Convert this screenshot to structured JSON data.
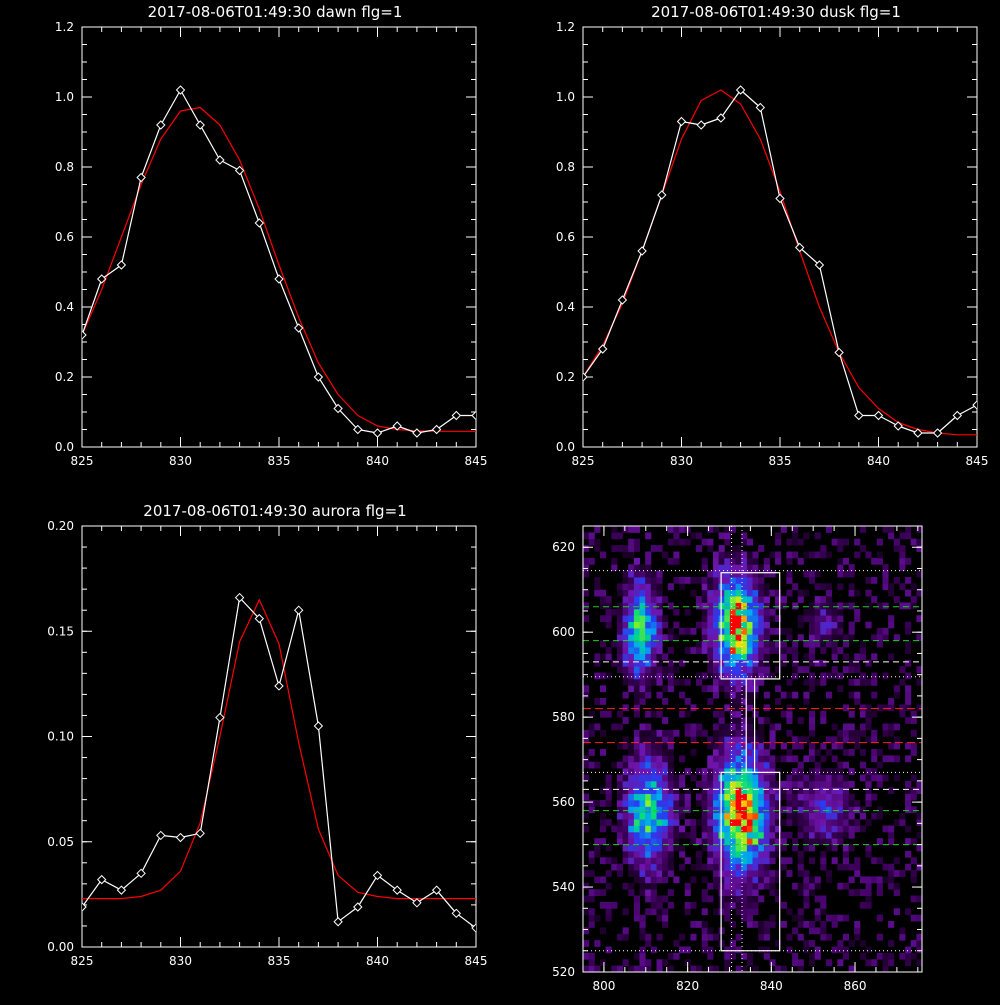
{
  "colors": {
    "background": "#000000",
    "axes": "#ffffff",
    "observed": "#ffffff",
    "fit": "#ff0000",
    "green_line": "#22cc22",
    "red_line": "#ff2222",
    "box": "#ffffff"
  },
  "chart_data": [
    {
      "id": "dawn",
      "type": "line",
      "title": "2017-08-06T01:49:30 dawn flg=1",
      "xlim": [
        825,
        845
      ],
      "ylim": [
        0,
        1.2
      ],
      "xticks": [
        "825",
        "830",
        "835",
        "840",
        "845"
      ],
      "yticks": [
        "0.0",
        "0.2",
        "0.4",
        "0.6",
        "0.8",
        "1.0",
        "1.2"
      ],
      "series": [
        {
          "style": "observed",
          "x": [
            825,
            826,
            827,
            828,
            829,
            830,
            831,
            832,
            833,
            834,
            835,
            836,
            837,
            838,
            839,
            840,
            841,
            842,
            843,
            844,
            845
          ],
          "y": [
            0.32,
            0.48,
            0.52,
            0.77,
            0.92,
            1.02,
            0.92,
            0.82,
            0.79,
            0.64,
            0.48,
            0.34,
            0.2,
            0.11,
            0.05,
            0.04,
            0.06,
            0.04,
            0.05,
            0.09,
            0.09
          ]
        },
        {
          "style": "fit",
          "x": [
            825,
            826,
            827,
            828,
            829,
            830,
            831,
            832,
            833,
            834,
            835,
            836,
            837,
            838,
            839,
            840,
            841,
            842,
            843,
            844,
            845
          ],
          "y": [
            0.32,
            0.45,
            0.6,
            0.75,
            0.88,
            0.96,
            0.97,
            0.92,
            0.82,
            0.68,
            0.52,
            0.37,
            0.24,
            0.15,
            0.09,
            0.06,
            0.05,
            0.046,
            0.045,
            0.045,
            0.045
          ]
        }
      ]
    },
    {
      "id": "dusk",
      "type": "line",
      "title": "2017-08-06T01:49:30 dusk flg=1",
      "xlim": [
        825,
        845
      ],
      "ylim": [
        0,
        1.2
      ],
      "xticks": [
        "825",
        "830",
        "835",
        "840",
        "845"
      ],
      "yticks": [
        "0.0",
        "0.2",
        "0.4",
        "0.6",
        "0.8",
        "1.0",
        "1.2"
      ],
      "series": [
        {
          "style": "observed",
          "x": [
            825,
            826,
            827,
            828,
            829,
            830,
            831,
            832,
            833,
            834,
            835,
            836,
            837,
            838,
            839,
            840,
            841,
            842,
            843,
            844,
            845
          ],
          "y": [
            0.2,
            0.28,
            0.42,
            0.56,
            0.72,
            0.93,
            0.92,
            0.94,
            1.02,
            0.97,
            0.71,
            0.57,
            0.52,
            0.27,
            0.09,
            0.09,
            0.06,
            0.04,
            0.04,
            0.09,
            0.12
          ]
        },
        {
          "style": "fit",
          "x": [
            825,
            826,
            827,
            828,
            829,
            830,
            831,
            832,
            833,
            834,
            835,
            836,
            837,
            838,
            839,
            840,
            841,
            842,
            843,
            844,
            845
          ],
          "y": [
            0.2,
            0.29,
            0.41,
            0.56,
            0.72,
            0.88,
            0.99,
            1.02,
            0.98,
            0.88,
            0.73,
            0.56,
            0.4,
            0.27,
            0.17,
            0.11,
            0.07,
            0.05,
            0.04,
            0.035,
            0.035
          ]
        }
      ]
    },
    {
      "id": "aurora",
      "type": "line",
      "title": "2017-08-06T01:49:30 aurora flg=1",
      "xlim": [
        825,
        845
      ],
      "ylim": [
        0,
        0.2
      ],
      "xticks": [
        "825",
        "830",
        "835",
        "840",
        "845"
      ],
      "yticks": [
        "0.00",
        "0.05",
        "0.10",
        "0.15",
        "0.20"
      ],
      "series": [
        {
          "style": "observed",
          "x": [
            825,
            826,
            827,
            828,
            829,
            830,
            831,
            832,
            833,
            834,
            835,
            836,
            837,
            838,
            839,
            840,
            841,
            842,
            843,
            844,
            845
          ],
          "y": [
            0.019,
            0.032,
            0.027,
            0.035,
            0.053,
            0.052,
            0.054,
            0.109,
            0.166,
            0.156,
            0.124,
            0.16,
            0.105,
            0.012,
            0.019,
            0.034,
            0.027,
            0.021,
            0.027,
            0.016,
            0.009
          ]
        },
        {
          "style": "fit",
          "x": [
            825,
            826,
            827,
            828,
            829,
            830,
            831,
            832,
            833,
            834,
            835,
            836,
            837,
            838,
            839,
            840,
            841,
            842,
            843,
            844,
            845
          ],
          "y": [
            0.023,
            0.023,
            0.023,
            0.024,
            0.027,
            0.036,
            0.059,
            0.1,
            0.145,
            0.165,
            0.144,
            0.097,
            0.056,
            0.034,
            0.026,
            0.024,
            0.023,
            0.023,
            0.023,
            0.023,
            0.023
          ]
        }
      ]
    },
    {
      "id": "image",
      "type": "heatmap",
      "xlim": [
        795,
        876
      ],
      "ylim": [
        520,
        625
      ],
      "xticks": [
        "800",
        "820",
        "840",
        "860"
      ],
      "yticks": [
        "520",
        "540",
        "560",
        "580",
        "600",
        "620"
      ],
      "blobs": [
        {
          "x": 808,
          "y": 600,
          "sx": 2.5,
          "sy": 7,
          "amp": 0.7
        },
        {
          "x": 831,
          "y": 601,
          "sx": 3.5,
          "sy": 7.5,
          "amp": 0.95
        },
        {
          "x": 810,
          "y": 557,
          "sx": 3.5,
          "sy": 8,
          "amp": 0.65
        },
        {
          "x": 832,
          "y": 557,
          "sx": 4,
          "sy": 9,
          "amp": 1.0
        },
        {
          "x": 852,
          "y": 558,
          "sx": 4,
          "sy": 5,
          "amp": 0.3
        },
        {
          "x": 852,
          "y": 602,
          "sx": 3,
          "sy": 4,
          "amp": 0.15
        }
      ],
      "boxes": [
        {
          "x0": 828,
          "x1": 842,
          "y0": 589,
          "y1": 614
        },
        {
          "x0": 828,
          "x1": 842,
          "y0": 525,
          "y1": 567
        },
        {
          "x0": 834,
          "x1": 836,
          "y0": 567,
          "y1": 589
        }
      ],
      "dotted_h_white": [
        614.5,
        589.5,
        567,
        525
      ],
      "dashed_h_white": [
        593,
        563
      ],
      "dashed_h_green": [
        606,
        598,
        558,
        550
      ],
      "dashed_h_red": [
        582,
        574
      ],
      "dotted_v_white": [
        830.5,
        833
      ]
    }
  ]
}
